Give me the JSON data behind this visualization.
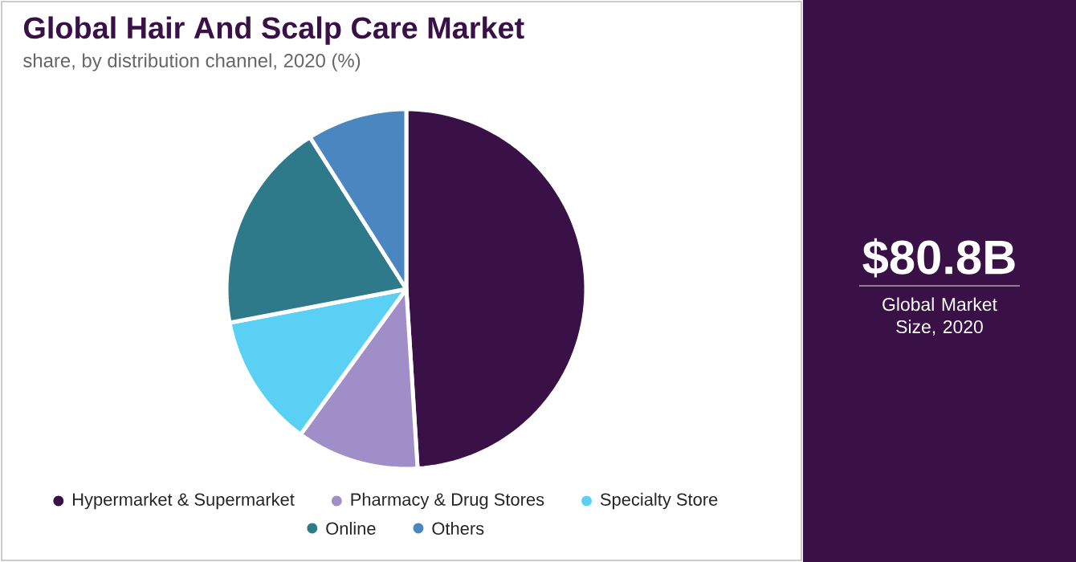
{
  "chart_data": [
    {
      "type": "pie",
      "title": "Global Hair And Scalp Care Market",
      "subtitle": "share, by distribution channel, 2020 (%)",
      "categories": [
        "Hypermarket & Supermarket",
        "Pharmacy & Drug Stores",
        "Specialty Store",
        "Online",
        "Others"
      ],
      "values": [
        49,
        11,
        12,
        19,
        9
      ],
      "colors": [
        "#3a1147",
        "#a08ec8",
        "#5bd0f5",
        "#2e7a8a",
        "#4a86bf"
      ],
      "legend": "bottom"
    },
    {
      "type": "other",
      "title": "$80.8B",
      "subtitle": "Global Market Size, 2020"
    }
  ]
}
